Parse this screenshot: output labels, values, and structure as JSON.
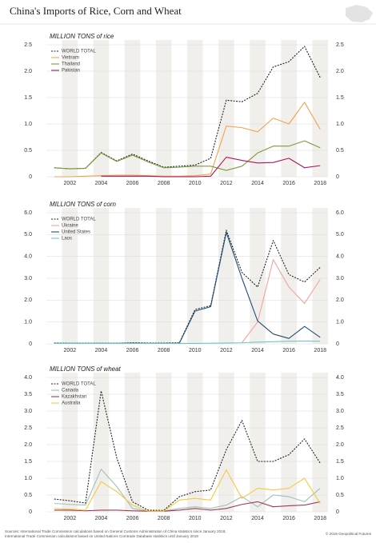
{
  "title": "China's Imports of Rice, Corn and Wheat",
  "chart_data": [
    {
      "type": "line",
      "ylabel": "MILLION TONS of rice",
      "x": [
        2001,
        2002,
        2003,
        2004,
        2005,
        2006,
        2007,
        2008,
        2009,
        2010,
        2011,
        2012,
        2013,
        2014,
        2015,
        2016,
        2017,
        2018
      ],
      "xlim": [
        2000.5,
        2018.5
      ],
      "xticks": [
        2002,
        2004,
        2006,
        2008,
        2010,
        2012,
        2014,
        2016,
        2018
      ],
      "ylim": [
        0,
        2.5
      ],
      "yticks": [
        0,
        0.5,
        {
          "value": 1,
          "label": "1.0"
        },
        1.5,
        {
          "value": 2,
          "label": "2.0"
        },
        2.5
      ],
      "legend": "upper left",
      "series": [
        {
          "name": "WORLD TOTAL",
          "color": "#222222",
          "style": "dashed",
          "values": [
            0.17,
            0.15,
            0.16,
            0.46,
            0.3,
            0.43,
            0.3,
            0.18,
            0.2,
            0.22,
            0.35,
            1.45,
            1.42,
            1.58,
            2.08,
            2.18,
            2.47,
            1.88
          ]
        },
        {
          "name": "Vietnam",
          "color": "#f5a04a",
          "values": [
            0,
            0,
            0.01,
            0.02,
            0.03,
            0.03,
            0.02,
            0.01,
            0.01,
            0.02,
            0.05,
            0.96,
            0.93,
            0.85,
            1.11,
            1.0,
            1.41,
            0.9
          ]
        },
        {
          "name": "Thailand",
          "color": "#7d9a3c",
          "values": [
            0.17,
            0.15,
            0.16,
            0.45,
            0.29,
            0.41,
            0.28,
            0.17,
            0.18,
            0.2,
            0.2,
            0.12,
            0.2,
            0.45,
            0.58,
            0.58,
            0.68,
            0.55
          ]
        },
        {
          "name": "Pakistan",
          "color": "#b0145c",
          "values": [
            null,
            null,
            null,
            0.01,
            0.01,
            0.01,
            0.01,
            0,
            0,
            0,
            0.01,
            0.37,
            0.31,
            0.26,
            0.27,
            0.35,
            0.17,
            0.21
          ]
        }
      ]
    },
    {
      "type": "line",
      "ylabel": "MILLION TONS of corn",
      "x": [
        2001,
        2002,
        2003,
        2004,
        2005,
        2006,
        2007,
        2008,
        2009,
        2010,
        2011,
        2012,
        2013,
        2014,
        2015,
        2016,
        2017,
        2018
      ],
      "xlim": [
        2000.5,
        2018.5
      ],
      "xticks": [
        2002,
        2004,
        2006,
        2008,
        2010,
        2012,
        2014,
        2016,
        2018
      ],
      "ylim": [
        0,
        6
      ],
      "yticks": [
        0,
        {
          "value": 1,
          "label": "1.0"
        },
        {
          "value": 2,
          "label": "2.0"
        },
        {
          "value": 3,
          "label": "3.0"
        },
        {
          "value": 4,
          "label": "4.0"
        },
        {
          "value": 5,
          "label": "5.0"
        },
        {
          "value": 6,
          "label": "6.0"
        }
      ],
      "legend": "upper left",
      "series": [
        {
          "name": "WORLD TOTAL",
          "color": "#222222",
          "style": "dashed",
          "values": [
            0.04,
            0.03,
            0.03,
            0.03,
            0.03,
            0.05,
            0.04,
            0.04,
            0.05,
            1.57,
            1.75,
            5.2,
            3.27,
            2.6,
            4.73,
            3.17,
            2.83,
            3.5
          ]
        },
        {
          "name": "Ukraine",
          "color": "#f4a29b",
          "values": [
            null,
            null,
            null,
            null,
            null,
            null,
            null,
            null,
            null,
            null,
            null,
            null,
            0.05,
            1.0,
            3.85,
            2.6,
            1.85,
            2.95
          ]
        },
        {
          "name": "United States",
          "color": "#1f4e79",
          "values": [
            0.02,
            0.02,
            0.02,
            0.02,
            0.02,
            0.03,
            0.02,
            0.02,
            0.03,
            1.5,
            1.7,
            5.1,
            3.0,
            1.05,
            0.45,
            0.25,
            0.8,
            0.3
          ]
        },
        {
          "name": "Laos",
          "color": "#6fc7c0",
          "values": [
            0.02,
            0.02,
            0.02,
            0.02,
            0.02,
            0.02,
            0.02,
            0.02,
            0.02,
            0.02,
            0.03,
            0.04,
            0.05,
            0.08,
            0.1,
            0.12,
            0.13,
            0.12
          ]
        }
      ]
    },
    {
      "type": "line",
      "ylabel": "MILLION TONS of wheat",
      "x": [
        2001,
        2002,
        2003,
        2004,
        2005,
        2006,
        2007,
        2008,
        2009,
        2010,
        2011,
        2012,
        2013,
        2014,
        2015,
        2016,
        2017,
        2018
      ],
      "xlim": [
        2000.5,
        2018.5
      ],
      "xticks": [
        2002,
        2004,
        2006,
        2008,
        2010,
        2012,
        2014,
        2016,
        2018
      ],
      "ylim": [
        0,
        4
      ],
      "yticks": [
        0,
        0.5,
        {
          "value": 1,
          "label": "1.0"
        },
        1.5,
        {
          "value": 2,
          "label": "2.0"
        },
        2.5,
        {
          "value": 3,
          "label": "3.0"
        },
        3.5,
        {
          "value": 4,
          "label": "4.0"
        }
      ],
      "legend": "upper left",
      "series": [
        {
          "name": "WORLD TOTAL",
          "color": "#222222",
          "style": "dashed",
          "values": [
            0.38,
            0.33,
            0.26,
            3.6,
            1.6,
            0.3,
            0.05,
            0.04,
            0.45,
            0.6,
            0.65,
            1.85,
            2.72,
            1.5,
            1.5,
            1.7,
            2.17,
            1.45
          ]
        },
        {
          "name": "Canada",
          "color": "#9fc0b9",
          "values": [
            0.25,
            0.22,
            0.2,
            1.27,
            0.75,
            0.1,
            0.02,
            0.02,
            0.1,
            0.15,
            0.1,
            0.2,
            0.45,
            0.15,
            0.5,
            0.45,
            0.3,
            0.7
          ]
        },
        {
          "name": "Kazakhstan",
          "color": "#9b3a5a",
          "values": [
            0.05,
            0.05,
            0.03,
            0.05,
            0.05,
            0.03,
            0.02,
            0.02,
            0.05,
            0.1,
            0.05,
            0.1,
            0.22,
            0.3,
            0.15,
            0.18,
            0.2,
            0.3
          ]
        },
        {
          "name": "Australia",
          "color": "#f5c843",
          "values": [
            0.1,
            0.08,
            0.05,
            0.9,
            0.6,
            0.2,
            0.02,
            0.02,
            0.35,
            0.4,
            0.35,
            1.25,
            0.4,
            0.7,
            0.65,
            0.7,
            1.0,
            0.25
          ]
        }
      ]
    }
  ],
  "sources": [
    "Sources: International Trade Commission calculations based on General Customs Administration of China statistics since January 2018,",
    "International Trade Commission calculations based on United Nations Comtrade Database statistics until January 2018"
  ],
  "copyright": "© 2019 Geopolitical Futures"
}
